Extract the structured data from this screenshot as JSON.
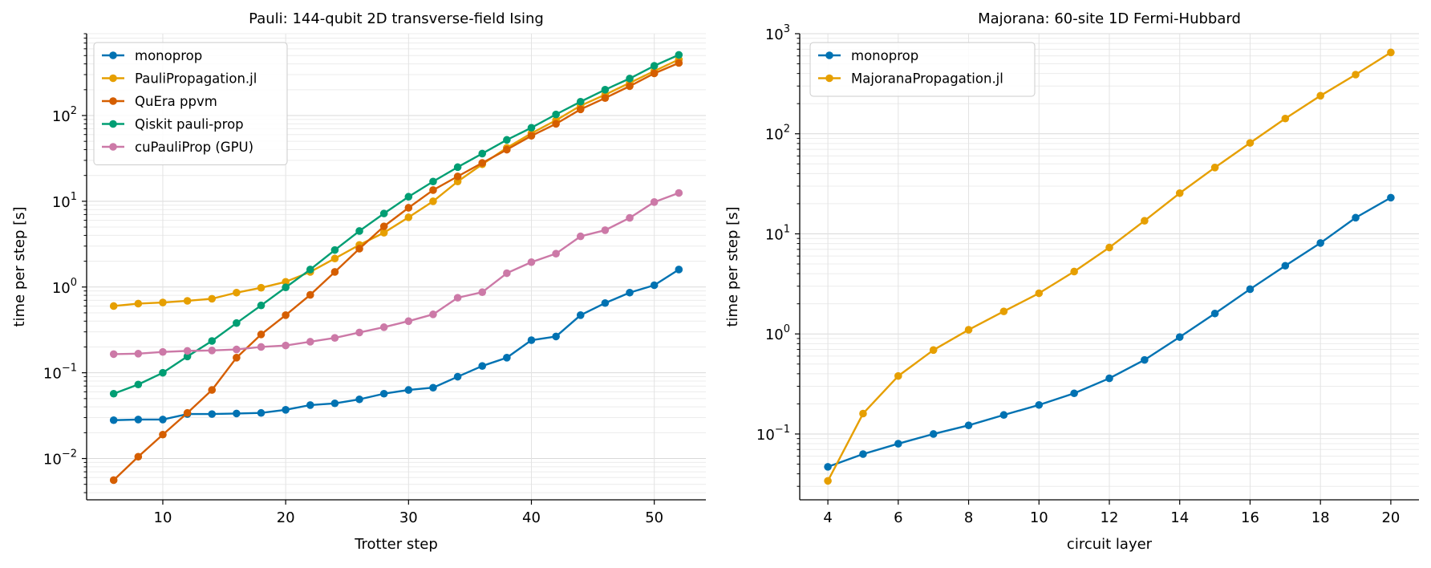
{
  "chart_data": [
    {
      "type": "line",
      "title": "Pauli: 144-qubit 2D transverse-field Ising",
      "xlabel": "Trotter step",
      "ylabel": "time per step [s]",
      "yscale": "log",
      "xlim": [
        3.8,
        54.2
      ],
      "ylim": [
        0.0033,
        900
      ],
      "xticks": [
        10,
        20,
        30,
        40,
        50
      ],
      "yticks": [
        {
          "value": 0.01,
          "base": "10",
          "exp": "−2"
        },
        {
          "value": 0.1,
          "base": "10",
          "exp": "−1"
        },
        {
          "value": 1,
          "base": "10",
          "exp": "0"
        },
        {
          "value": 10,
          "base": "10",
          "exp": "1"
        },
        {
          "value": 100,
          "base": "10",
          "exp": "2"
        }
      ],
      "grid": true,
      "legend_position": "top-left",
      "x": [
        6,
        8,
        10,
        12,
        14,
        16,
        18,
        20,
        22,
        24,
        26,
        28,
        30,
        32,
        34,
        36,
        38,
        40,
        42,
        44,
        46,
        48,
        50,
        52
      ],
      "series": [
        {
          "name": "monoprop",
          "color": "#0072b2",
          "values": [
            0.028,
            0.0285,
            0.0285,
            0.033,
            0.033,
            0.0335,
            0.034,
            0.037,
            0.042,
            0.044,
            0.049,
            0.057,
            0.063,
            0.067,
            0.09,
            0.12,
            0.15,
            0.24,
            0.265,
            0.47,
            0.65,
            0.86,
            1.05,
            1.6
          ]
        },
        {
          "name": "PauliPropagation.jl",
          "color": "#e69f00",
          "values": [
            0.6,
            0.64,
            0.66,
            0.69,
            0.73,
            0.86,
            0.98,
            1.15,
            1.5,
            2.15,
            3.1,
            4.3,
            6.5,
            10,
            17,
            27,
            42,
            62,
            88,
            130,
            175,
            240,
            330,
            450
          ]
        },
        {
          "name": "QuEra ppvm",
          "color": "#d55e00",
          "values": [
            0.0056,
            0.0105,
            0.019,
            0.034,
            0.063,
            0.15,
            0.28,
            0.47,
            0.81,
            1.5,
            2.8,
            5.1,
            8.4,
            13.5,
            19.5,
            28,
            40,
            58,
            80,
            118,
            160,
            220,
            310,
            410
          ]
        },
        {
          "name": "Qiskit pauli-prop",
          "color": "#009e73",
          "values": [
            0.057,
            0.073,
            0.1,
            0.155,
            0.235,
            0.38,
            0.61,
            0.99,
            1.6,
            2.7,
            4.5,
            7.2,
            11.3,
            17,
            25,
            36,
            52,
            72,
            103,
            145,
            200,
            270,
            380,
            510
          ]
        },
        {
          "name": "cuPauliProp (GPU)",
          "color": "#cc79a7",
          "values": [
            0.165,
            0.167,
            0.175,
            0.18,
            0.182,
            0.187,
            0.2,
            0.208,
            0.23,
            0.255,
            0.295,
            0.34,
            0.4,
            0.48,
            0.75,
            0.87,
            1.45,
            1.95,
            2.45,
            3.9,
            4.6,
            6.4,
            9.8,
            12.5
          ]
        }
      ]
    },
    {
      "type": "line",
      "title": "Majorana: 60-site 1D Fermi-Hubbard",
      "xlabel": "circuit layer",
      "ylabel": "time per step [s]",
      "yscale": "log",
      "xlim": [
        3.2,
        20.8
      ],
      "ylim": [
        0.022,
        1000
      ],
      "xticks": [
        4,
        6,
        8,
        10,
        12,
        14,
        16,
        18,
        20
      ],
      "yticks": [
        {
          "value": 0.1,
          "base": "10",
          "exp": "−1"
        },
        {
          "value": 1,
          "base": "10",
          "exp": "0"
        },
        {
          "value": 10,
          "base": "10",
          "exp": "1"
        },
        {
          "value": 100,
          "base": "10",
          "exp": "2"
        },
        {
          "value": 1000,
          "base": "10",
          "exp": "3"
        }
      ],
      "grid": true,
      "legend_position": "top-left",
      "x": [
        4,
        5,
        6,
        7,
        8,
        9,
        10,
        11,
        12,
        13,
        14,
        15,
        16,
        17,
        18,
        19,
        20
      ],
      "series": [
        {
          "name": "monoprop",
          "color": "#0072b2",
          "values": [
            0.047,
            0.063,
            0.08,
            0.1,
            0.122,
            0.155,
            0.195,
            0.255,
            0.36,
            0.55,
            0.93,
            1.6,
            2.8,
            4.8,
            8.1,
            14.5,
            23
          ]
        },
        {
          "name": "MajoranaPropagation.jl",
          "color": "#e69f00",
          "values": [
            0.034,
            0.16,
            0.38,
            0.69,
            1.1,
            1.68,
            2.55,
            4.2,
            7.3,
            13.5,
            25.5,
            46,
            81,
            142,
            240,
            390,
            650
          ]
        }
      ]
    }
  ]
}
